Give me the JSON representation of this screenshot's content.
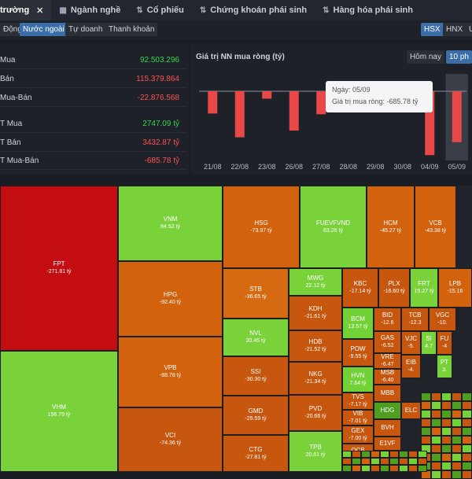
{
  "tabs": [
    {
      "label": "trường",
      "icon": "",
      "close": "✕"
    },
    {
      "label": "Ngành nghề",
      "icon": "▦"
    },
    {
      "label": "Cổ phiếu",
      "icon": "⇅"
    },
    {
      "label": "Chứng khoán phái sinh",
      "icon": "⇅"
    },
    {
      "label": "Hàng hóa phái sinh",
      "icon": "⇅"
    }
  ],
  "subtabs": [
    "Động",
    "Nước ngoài",
    "Tự doanh",
    "Thanh khoản"
  ],
  "exchanges": [
    "HSX",
    "HNX",
    "U"
  ],
  "stats": [
    {
      "label": "Mua",
      "value": "92.503.296",
      "color": "green"
    },
    {
      "label": "Bán",
      "value": "115.379.864",
      "color": "red"
    },
    {
      "label": "Mua-Bán",
      "value": "-22.876.568",
      "color": "red"
    },
    {
      "label": "T Mua",
      "value": "2747.09 tỷ",
      "color": "green"
    },
    {
      "label": "T Bán",
      "value": "3432.87 tỷ",
      "color": "red"
    },
    {
      "label": "T Mua-Bán",
      "value": "-685.78 tỷ",
      "color": "red"
    }
  ],
  "chart_header": {
    "title": "Giá trị NN mua ròng (tỷ)",
    "ranges": [
      "Hôm nay",
      "10 ph"
    ]
  },
  "tooltip": {
    "date_line": "Ngày: 05/09",
    "value_line": "Giá trị mua ròng: -685.78 tỷ"
  },
  "chart_data": {
    "type": "bar",
    "title": "Giá trị NN mua ròng (tỷ)",
    "categories": [
      "21/08",
      "22/08",
      "23/08",
      "26/08",
      "27/08",
      "28/08",
      "29/08",
      "30/08",
      "04/09",
      "05/09"
    ],
    "values": [
      -300,
      -620,
      -100,
      -530,
      -310,
      null,
      null,
      null,
      -860,
      -685.78
    ],
    "ylim": [
      -900,
      100
    ],
    "highlight_index": 9
  },
  "treemap": [
    {
      "ticker": "FPT",
      "value": "-271.81 tỷ"
    },
    {
      "ticker": "VHM",
      "value": "196.79 tỷ"
    },
    {
      "ticker": "VNM",
      "value": "94.52 tỷ"
    },
    {
      "ticker": "HPG",
      "value": "-92.40 tỷ"
    },
    {
      "ticker": "VPB",
      "value": "-88.78 tỷ"
    },
    {
      "ticker": "VCI",
      "value": "-74.36 tỷ"
    },
    {
      "ticker": "HSG",
      "value": "-73.97 tỷ"
    },
    {
      "ticker": "FUEVFVND",
      "value": "63.26 tỷ"
    },
    {
      "ticker": "HCM",
      "value": "-45.27 tỷ"
    },
    {
      "ticker": "VCB",
      "value": "-43.38 tỷ"
    },
    {
      "ticker": "STB",
      "value": "-36.65 tỷ"
    },
    {
      "ticker": "MWG",
      "value": "22.12 tỷ"
    },
    {
      "ticker": "KBC",
      "value": "-17.14 tỷ"
    },
    {
      "ticker": "PLX",
      "value": "-16.60 tỷ"
    },
    {
      "ticker": "FRT",
      "value": "15.27 tỷ"
    },
    {
      "ticker": "LPB",
      "value": "-15.16"
    },
    {
      "ticker": "NVL",
      "value": "30.45 tỷ"
    },
    {
      "ticker": "KDH",
      "value": "-21.61 tỷ"
    },
    {
      "ticker": "BCM",
      "value": "13.57 tỷ"
    },
    {
      "ticker": "BID",
      "value": "-12.6"
    },
    {
      "ticker": "TCB",
      "value": "-12.3"
    },
    {
      "ticker": "VGC",
      "value": "-10."
    },
    {
      "ticker": "SSI",
      "value": "-30.30 tỷ"
    },
    {
      "ticker": "HDB",
      "value": "-21.52 tỷ"
    },
    {
      "ticker": "POW",
      "value": "-9.55 tỷ"
    },
    {
      "ticker": "GAS",
      "value": "-6.52"
    },
    {
      "ticker": "VJC",
      "value": "-5."
    },
    {
      "ticker": "SI",
      "value": "4.7"
    },
    {
      "ticker": "FU",
      "value": "-4"
    },
    {
      "ticker": "NKG",
      "value": "-21.34 tỷ"
    },
    {
      "ticker": "HVN",
      "value": "7.64 tỷ"
    },
    {
      "ticker": "VRE",
      "value": "-6.47"
    },
    {
      "ticker": "EIB",
      "value": "-4."
    },
    {
      "ticker": "MSB",
      "value": "-6.40"
    },
    {
      "ticker": "GMD",
      "value": "-29.59 tỷ"
    },
    {
      "ticker": "PVD",
      "value": "-20.66 tỷ"
    },
    {
      "ticker": "TVS",
      "value": "-7.17 tỷ"
    },
    {
      "ticker": "MBB",
      "value": ""
    },
    {
      "ticker": "VIB",
      "value": "-7.01 tỷ"
    },
    {
      "ticker": "HDG",
      "value": ""
    },
    {
      "ticker": "ELC",
      "value": ""
    },
    {
      "ticker": "CTG",
      "value": "-27.81 tỷ"
    },
    {
      "ticker": "TPB",
      "value": "20.61 tỷ"
    },
    {
      "ticker": "GEX",
      "value": "-7.00 tỷ"
    },
    {
      "ticker": "BVH",
      "value": ""
    },
    {
      "ticker": "OCB",
      "value": ""
    },
    {
      "ticker": "E1VF",
      "value": ""
    },
    {
      "ticker": "PT",
      "value": "3."
    }
  ],
  "colors": {
    "positive": "#73d138",
    "negative_strong": "#c30d10",
    "negative": "#d2620e",
    "bar": "#e84848"
  }
}
